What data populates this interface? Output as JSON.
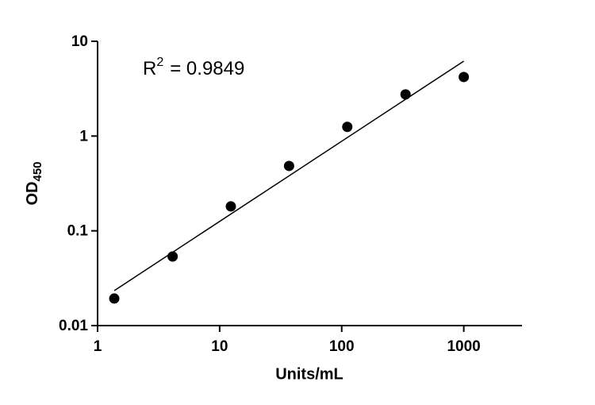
{
  "chart_data": {
    "type": "scatter",
    "x_label": "Units/mL",
    "y_label": "OD",
    "y_label_subscript": "450",
    "annotation": {
      "base": "R",
      "superscript": "2",
      "text": "= 0.9849"
    },
    "x": [
      1.37,
      4.12,
      12.35,
      37.04,
      111.1,
      333.3,
      1000
    ],
    "series": [
      {
        "color": "#000000",
        "values": [
          0.0193,
          0.0536,
          0.181,
          0.484,
          1.25,
          2.75,
          4.2
        ]
      }
    ],
    "fit": {
      "color": "#000000",
      "x": [
        1.37,
        1000
      ],
      "y": [
        0.0234,
        6.18
      ]
    },
    "xlim": [
      1,
      3000
    ],
    "ylim": [
      0.01,
      10
    ],
    "xticks": [
      1,
      10,
      100,
      1000
    ],
    "yticks": [
      0.01,
      0.1,
      1,
      10
    ],
    "xscale": "log",
    "yscale": "log",
    "grid": false
  }
}
